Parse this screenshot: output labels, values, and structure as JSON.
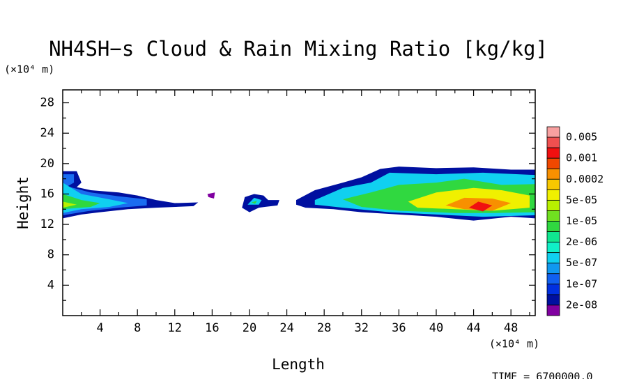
{
  "chart_data": {
    "type": "contour",
    "title": "NH4SH−s Cloud & Rain Mixing Ratio [kg/kg]",
    "x_label": "Length",
    "y_label": "Height",
    "x_unit": "(×10⁴ m)",
    "y_unit": "(×10⁴ m)",
    "time_label": "TIME = 6700000.0",
    "xlim": [
      0,
      50.6
    ],
    "ylim": [
      0,
      29.7
    ],
    "xticks": [
      4,
      8,
      12,
      16,
      20,
      24,
      28,
      32,
      36,
      40,
      44,
      48
    ],
    "yticks": [
      4,
      8,
      12,
      16,
      20,
      24,
      28
    ],
    "xminorticks": [
      2,
      6,
      10,
      14,
      18,
      22,
      26,
      30,
      34,
      38,
      42,
      46,
      50
    ],
    "yminorticks": [
      2,
      6,
      10,
      14,
      18,
      22,
      26
    ],
    "colorbar_colors": [
      "#f8a0a0",
      "#f05050",
      "#f01010",
      "#f04800",
      "#f89000",
      "#f8c800",
      "#f0f000",
      "#b8f000",
      "#70e020",
      "#30d840",
      "#10e890",
      "#10f0c8",
      "#10d0f0",
      "#1098f0",
      "#1060f0",
      "#0030e0",
      "#0010a0",
      "#8000a0"
    ],
    "colorbar_labels": [
      "0.005",
      "0.001",
      "0.0002",
      "5e-05",
      "1e-05",
      "2e-06",
      "5e-07",
      "1e-07",
      "2e-08"
    ],
    "fields": [
      {
        "color": "#8000a0",
        "x": [
          15.5,
          16.3,
          16.2,
          15.6
        ],
        "y": [
          16.0,
          16.2,
          15.4,
          15.6
        ]
      },
      {
        "color": "#0010a0",
        "x": [
          0,
          1.5,
          2.0,
          1.5,
          3,
          6,
          8,
          10,
          12,
          14.5,
          14,
          10,
          7,
          4,
          2,
          0
        ],
        "y": [
          19.0,
          19.0,
          17.5,
          16.9,
          16.5,
          16.2,
          15.8,
          15.2,
          14.8,
          14.9,
          14.4,
          14.2,
          14.0,
          13.6,
          13.3,
          12.8
        ]
      },
      {
        "color": "#1a6cf0",
        "x": [
          0,
          1.2,
          1.2,
          0.5,
          3,
          6,
          9,
          9,
          6,
          3,
          0
        ],
        "y": [
          18.6,
          18.6,
          17.5,
          17.0,
          16.2,
          15.7,
          15.3,
          14.5,
          14.2,
          13.8,
          13.2
        ]
      },
      {
        "color": "#10d0f0",
        "x": [
          0,
          2,
          5,
          7,
          5,
          2,
          0
        ],
        "y": [
          17.5,
          16.0,
          15.3,
          14.8,
          14.3,
          14.0,
          13.5
        ]
      },
      {
        "color": "#30d840",
        "x": [
          0,
          2,
          4,
          3,
          0
        ],
        "y": [
          16.0,
          15.2,
          14.8,
          14.3,
          14.0
        ]
      },
      {
        "color": "#b8f000",
        "x": [
          0,
          1.5,
          0
        ],
        "y": [
          15.0,
          14.6,
          14.2
        ]
      },
      {
        "color": "#0010a0",
        "x": [
          19.2,
          19.5,
          20.5,
          21.5,
          22,
          23.2,
          23,
          21,
          20
        ],
        "y": [
          14.2,
          15.6,
          16.0,
          15.8,
          15.2,
          15.2,
          14.5,
          14.2,
          13.6
        ]
      },
      {
        "color": "#10d0f0",
        "x": [
          19.8,
          20.5,
          21.3,
          21
        ],
        "y": [
          14.6,
          15.5,
          15.2,
          14.6
        ]
      },
      {
        "color": "#30d840",
        "x": [
          20.2,
          20.8,
          20.6
        ],
        "y": [
          14.9,
          15.1,
          14.7
        ]
      },
      {
        "color": "#0010a0",
        "x": [
          25,
          27,
          30,
          32,
          34,
          36,
          40,
          44,
          48,
          50.6,
          50.6,
          48,
          44,
          40,
          36,
          32,
          29,
          26,
          25
        ],
        "y": [
          15.2,
          16.5,
          17.5,
          18.2,
          19.3,
          19.6,
          19.4,
          19.5,
          19.2,
          19.2,
          12.8,
          13.0,
          12.5,
          13.0,
          13.3,
          13.6,
          14.0,
          14.2,
          14.6
        ]
      },
      {
        "color": "#10d0f0",
        "x": [
          27,
          30,
          33,
          35,
          40,
          45,
          50.6,
          50.6,
          45,
          40,
          35,
          30,
          27
        ],
        "y": [
          15.2,
          16.8,
          17.5,
          18.8,
          18.6,
          18.8,
          18.5,
          13.2,
          13.0,
          13.3,
          13.6,
          14.2,
          14.6
        ]
      },
      {
        "color": "#30d840",
        "x": [
          30,
          33,
          36,
          40,
          43,
          47,
          50.6,
          50.6,
          46,
          42,
          36,
          32
        ],
        "y": [
          15.3,
          16.2,
          17.2,
          17.5,
          18.0,
          17.2,
          17.3,
          13.6,
          13.5,
          13.5,
          13.8,
          14.3
        ]
      },
      {
        "color": "#f0f000",
        "x": [
          37,
          40,
          44,
          47,
          50,
          50,
          46,
          42,
          38
        ],
        "y": [
          15.0,
          16.2,
          16.8,
          16.5,
          15.8,
          14.2,
          13.8,
          14.0,
          14.2
        ]
      },
      {
        "color": "#f89000",
        "x": [
          41,
          43,
          46,
          48,
          46,
          43
        ],
        "y": [
          14.5,
          15.5,
          15.4,
          14.8,
          13.8,
          14.0
        ]
      },
      {
        "color": "#f01010",
        "x": [
          43.5,
          44.5,
          46,
          45
        ],
        "y": [
          14.2,
          15.0,
          14.5,
          13.7
        ]
      }
    ]
  }
}
